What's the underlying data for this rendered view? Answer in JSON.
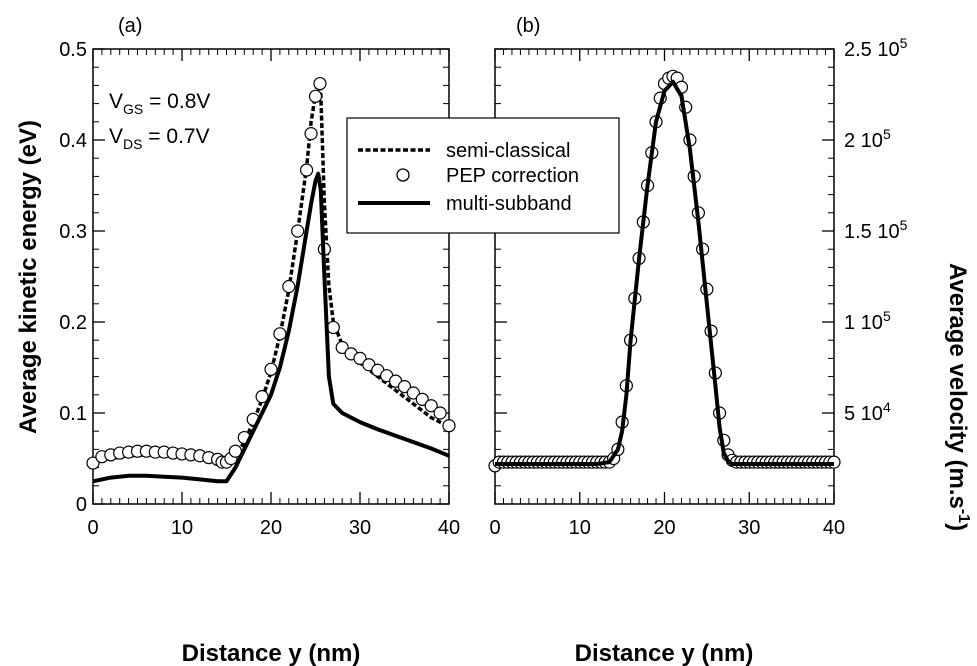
{
  "chart_data": [
    {
      "panel": "(a)",
      "type": "line",
      "xlabel": "Distance y (nm)",
      "ylabel": "Average kinetic energy (eV)",
      "xlim": [
        0,
        40
      ],
      "ylim": [
        0,
        0.5
      ],
      "xticks": [
        0,
        10,
        20,
        30,
        40
      ],
      "xtick_labels": [
        "0",
        "10",
        "20",
        "30",
        "40"
      ],
      "yticks": [
        0,
        0.1,
        0.2,
        0.3,
        0.4,
        0.5
      ],
      "ytick_labels": [
        "0",
        "0.1",
        "0.2",
        "0.3",
        "0.4",
        "0.5"
      ],
      "grid": false,
      "legend_position": "top-right",
      "annotations": [
        {
          "main": "V",
          "sub": "GS",
          "rest": " = 0.8V"
        },
        {
          "main": "V",
          "sub": "DS",
          "rest": " = 0.7V"
        }
      ],
      "series": [
        {
          "name": "semi-classical",
          "style": "dashed",
          "x": [
            0,
            2,
            4,
            6,
            8,
            10,
            12,
            14,
            15,
            16,
            17,
            18,
            19,
            20,
            21,
            22,
            23,
            24,
            24.5,
            25,
            25.3,
            25.6,
            26,
            26.5,
            27,
            28,
            29,
            30,
            32,
            34,
            36,
            38,
            40
          ],
          "y": [
            0.045,
            0.05,
            0.053,
            0.054,
            0.053,
            0.052,
            0.05,
            0.047,
            0.045,
            0.052,
            0.068,
            0.09,
            0.115,
            0.145,
            0.185,
            0.235,
            0.3,
            0.37,
            0.42,
            0.45,
            0.466,
            0.45,
            0.33,
            0.24,
            0.2,
            0.175,
            0.165,
            0.155,
            0.14,
            0.125,
            0.11,
            0.095,
            0.085
          ]
        },
        {
          "name": "PEP correction",
          "style": "markers",
          "x": [
            0,
            1,
            2,
            3,
            4,
            5,
            6,
            7,
            8,
            9,
            10,
            11,
            12,
            13,
            14,
            14.5,
            15,
            15.5,
            16,
            17,
            18,
            19,
            20,
            21,
            22,
            23,
            24,
            24.5,
            25,
            25.5,
            26,
            27,
            28,
            29,
            30,
            31,
            32,
            33,
            34,
            35,
            36,
            37,
            38,
            39,
            40
          ],
          "y": [
            0.045,
            0.052,
            0.054,
            0.056,
            0.057,
            0.058,
            0.058,
            0.057,
            0.057,
            0.056,
            0.055,
            0.054,
            0.053,
            0.051,
            0.049,
            0.046,
            0.046,
            0.05,
            0.058,
            0.073,
            0.093,
            0.118,
            0.148,
            0.187,
            0.239,
            0.3,
            0.367,
            0.407,
            0.448,
            0.462,
            0.28,
            0.194,
            0.172,
            0.165,
            0.16,
            0.153,
            0.147,
            0.141,
            0.135,
            0.129,
            0.122,
            0.115,
            0.108,
            0.1,
            0.086
          ]
        },
        {
          "name": "multi-subband",
          "style": "solid",
          "x": [
            0,
            2,
            4,
            6,
            8,
            10,
            12,
            14,
            15,
            16,
            17,
            18,
            19,
            20,
            21,
            22,
            23,
            24,
            24.5,
            25,
            25.3,
            25.6,
            26,
            26.5,
            27,
            28,
            30,
            32,
            34,
            36,
            38,
            40
          ],
          "y": [
            0.025,
            0.029,
            0.031,
            0.031,
            0.03,
            0.029,
            0.027,
            0.025,
            0.025,
            0.04,
            0.06,
            0.08,
            0.1,
            0.12,
            0.15,
            0.19,
            0.24,
            0.3,
            0.33,
            0.355,
            0.363,
            0.345,
            0.25,
            0.14,
            0.11,
            0.1,
            0.09,
            0.082,
            0.075,
            0.068,
            0.061,
            0.053
          ]
        }
      ]
    },
    {
      "panel": "(b)",
      "type": "line",
      "xlabel": "Distance y (nm)",
      "ylabel": "Average velocity (m.s",
      "ylabel_sup": "-1",
      "ylabel_end": ")",
      "xlim": [
        0,
        40
      ],
      "ylim": [
        0,
        250000
      ],
      "xticks": [
        0,
        10,
        20,
        30,
        40
      ],
      "xtick_labels": [
        "0",
        "10",
        "20",
        "30",
        "40"
      ],
      "yticks": [
        50000,
        100000,
        150000,
        200000,
        250000
      ],
      "ytick_labels": [
        {
          "mant": "5 10",
          "exp": "4"
        },
        {
          "mant": "1 10",
          "exp": "5"
        },
        {
          "mant": "1.5 10",
          "exp": "5"
        },
        {
          "mant": "2 10",
          "exp": "5"
        },
        {
          "mant": "2.5 10",
          "exp": "5"
        }
      ],
      "grid": false,
      "series": [
        {
          "name": "semi-classical",
          "style": "dashed",
          "x": [
            0,
            4,
            8,
            12,
            13.5,
            14.5,
            15,
            15.5,
            16,
            17,
            18,
            19,
            20,
            21,
            22,
            23,
            24,
            25,
            26,
            26.5,
            27,
            27.5,
            28,
            30,
            34,
            40
          ],
          "y": [
            22000,
            22000,
            22000,
            22000,
            23000,
            30000,
            40000,
            60000,
            90000,
            135000,
            175000,
            210000,
            228000,
            234000,
            225000,
            195000,
            155000,
            110000,
            65000,
            42000,
            28000,
            23500,
            22000,
            22000,
            22000,
            22000
          ]
        },
        {
          "name": "PEP correction",
          "style": "markers",
          "x": [
            0,
            0.5,
            1,
            1.5,
            2,
            2.5,
            3,
            3.5,
            4,
            4.5,
            5,
            5.5,
            6,
            6.5,
            7,
            7.5,
            8,
            8.5,
            9,
            9.5,
            10,
            10.5,
            11,
            11.5,
            12,
            12.5,
            13,
            13.5,
            14,
            14.5,
            15,
            15.5,
            16,
            16.5,
            17,
            17.5,
            18,
            18.5,
            19,
            19.5,
            20,
            20.5,
            21,
            21.5,
            22,
            22.5,
            23,
            23.5,
            24,
            24.5,
            25,
            25.5,
            26,
            26.5,
            27,
            27.5,
            28,
            28.5,
            29,
            29.5,
            30,
            30.5,
            31,
            31.5,
            32,
            32.5,
            33,
            33.5,
            34,
            34.5,
            35,
            35.5,
            36,
            36.5,
            37,
            37.5,
            38,
            38.5,
            39,
            39.5,
            40
          ],
          "y": [
            21000,
            23000,
            23000,
            23000,
            23000,
            23000,
            23000,
            23000,
            23000,
            23000,
            23000,
            23000,
            23000,
            23000,
            23000,
            23000,
            23000,
            23000,
            23000,
            23000,
            23000,
            23000,
            23000,
            23000,
            23000,
            23000,
            23000,
            23000,
            25000,
            30000,
            45000,
            65000,
            90000,
            113000,
            135000,
            155000,
            175000,
            193000,
            210000,
            223000,
            231000,
            234000,
            235000,
            234000,
            229000,
            218000,
            200000,
            180000,
            160000,
            140000,
            118000,
            95000,
            72000,
            50000,
            35000,
            27000,
            24000,
            23000,
            23000,
            23000,
            23000,
            23000,
            23000,
            23000,
            23000,
            23000,
            23000,
            23000,
            23000,
            23000,
            23000,
            23000,
            23000,
            23000,
            23000,
            23000,
            23000,
            23000,
            23000,
            23000,
            23000
          ]
        },
        {
          "name": "multi-subband",
          "style": "solid",
          "x": [
            0,
            4,
            8,
            12,
            13.5,
            14.5,
            15,
            15.5,
            16,
            17,
            18,
            19,
            20,
            21,
            22,
            23,
            24,
            25,
            26,
            26.5,
            27,
            27.5,
            28,
            30,
            34,
            40
          ],
          "y": [
            22000,
            22000,
            22000,
            22000,
            23000,
            30000,
            40000,
            60000,
            90000,
            135000,
            175000,
            210000,
            227000,
            232000,
            224000,
            195000,
            155000,
            110000,
            65000,
            42000,
            28000,
            23500,
            22000,
            22000,
            22000,
            22000
          ]
        }
      ]
    }
  ]
}
